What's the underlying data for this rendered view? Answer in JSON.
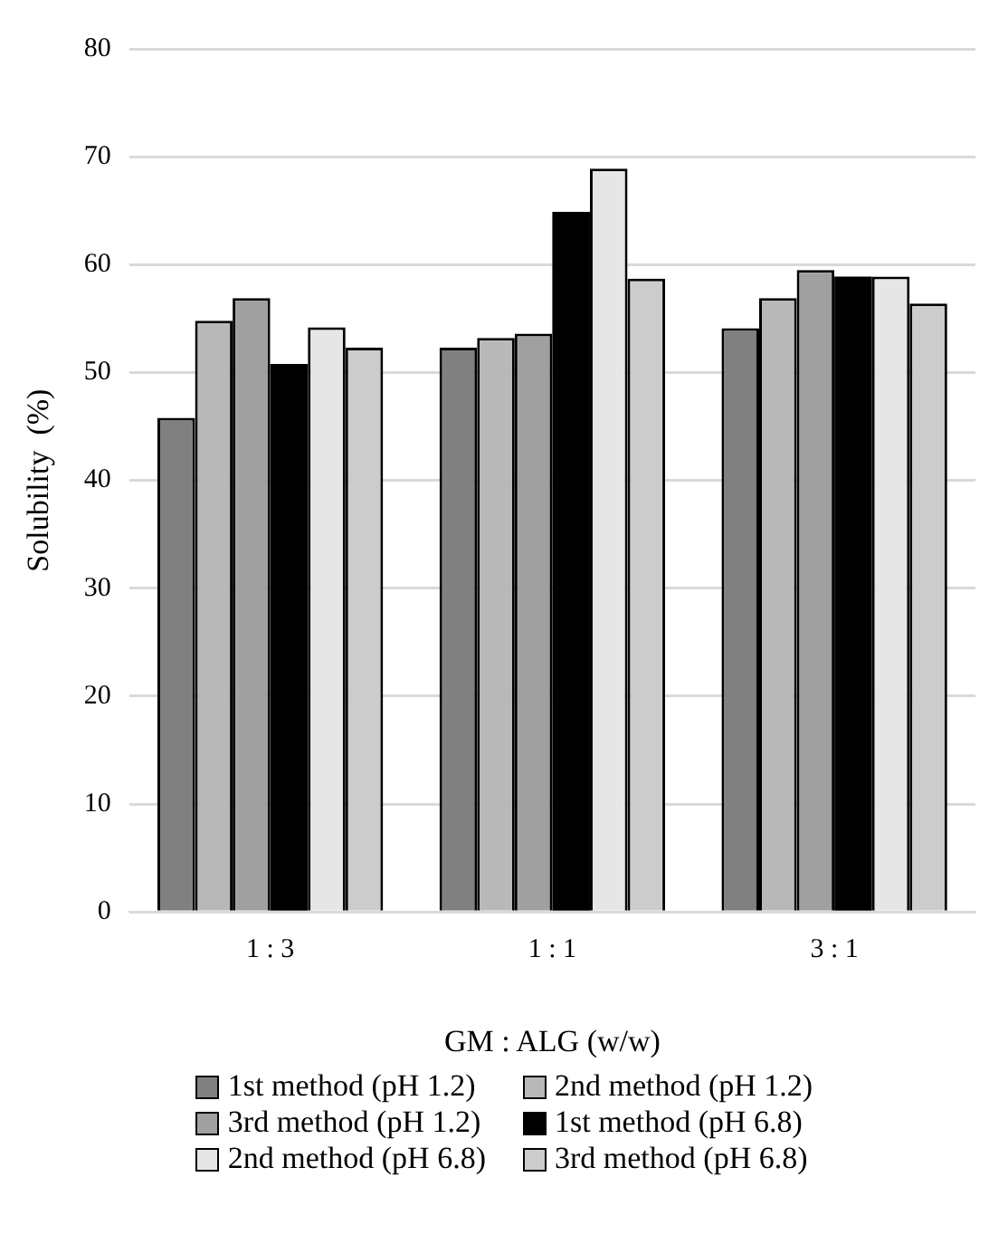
{
  "chart_data": {
    "type": "bar",
    "xlabel": "GM : ALG (w/w)",
    "ylabel": "Solubility  (%)",
    "categories": [
      "1 : 3",
      "1 : 1",
      "3 : 1"
    ],
    "series": [
      {
        "name": "1st method (pH 1.2)",
        "color": "#808080",
        "values": [
          45.8,
          52.3,
          54.1
        ]
      },
      {
        "name": "2nd method (pH 1.2)",
        "color": "#b8b8b8",
        "values": [
          54.8,
          53.2,
          56.9
        ]
      },
      {
        "name": "3rd method (pH 1.2)",
        "color": "#a0a0a0",
        "values": [
          56.9,
          53.6,
          59.5
        ]
      },
      {
        "name": "1st method (pH 6.8)",
        "color": "#000000",
        "values": [
          50.8,
          64.9,
          58.9
        ]
      },
      {
        "name": "2nd method (pH 6.8)",
        "color": "#e6e6e6",
        "values": [
          54.2,
          68.9,
          58.9
        ]
      },
      {
        "name": "3rd method (pH 6.8)",
        "color": "#cccccc",
        "values": [
          52.3,
          58.7,
          56.4
        ]
      }
    ],
    "ylim": [
      0,
      80
    ],
    "yticks": [
      0,
      10,
      20,
      30,
      40,
      50,
      60,
      70,
      80
    ],
    "grid": "y",
    "legend": "bottom"
  }
}
